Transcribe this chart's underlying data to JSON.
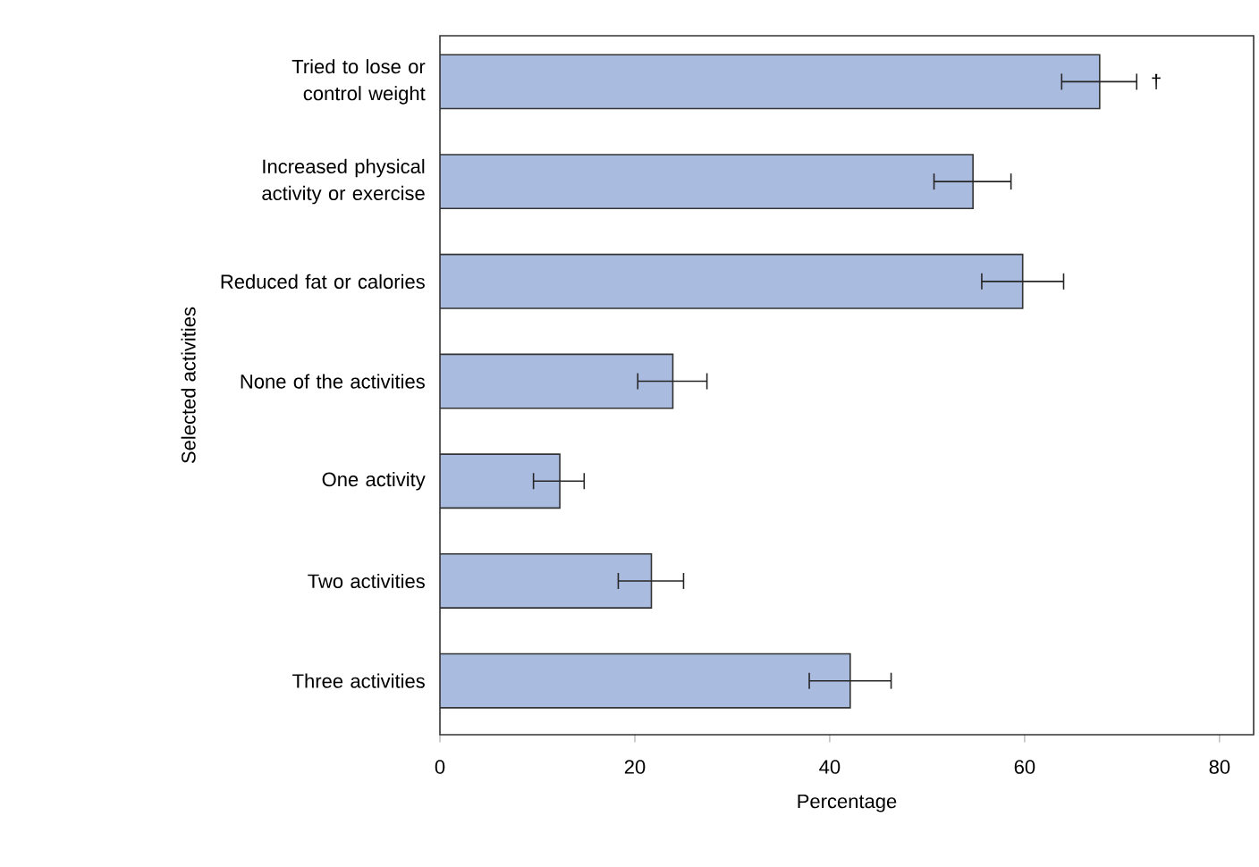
{
  "chart_data": {
    "type": "bar",
    "orientation": "horizontal",
    "xlabel": "Percentage",
    "ylabel": "Selected activities",
    "categories": [
      "Tried to lose or control weight",
      "Increased physical activity or exercise",
      "Reduced fat or calories",
      "None of the activities",
      "One activity",
      "Two activities",
      "Three activities"
    ],
    "values": [
      67.7,
      54.7,
      59.8,
      23.9,
      12.3,
      21.7,
      42.1
    ],
    "errors": [
      [
        63.8,
        71.5
      ],
      [
        50.7,
        58.6
      ],
      [
        55.6,
        64.0
      ],
      [
        20.3,
        27.4
      ],
      [
        9.6,
        14.8
      ],
      [
        18.3,
        25.0
      ],
      [
        37.9,
        46.3
      ]
    ],
    "color": "#aabbe0",
    "xlim": [
      0,
      83.5
    ],
    "xticks": [
      0,
      20,
      40,
      60,
      80
    ],
    "annotations": [
      "†"
    ]
  }
}
